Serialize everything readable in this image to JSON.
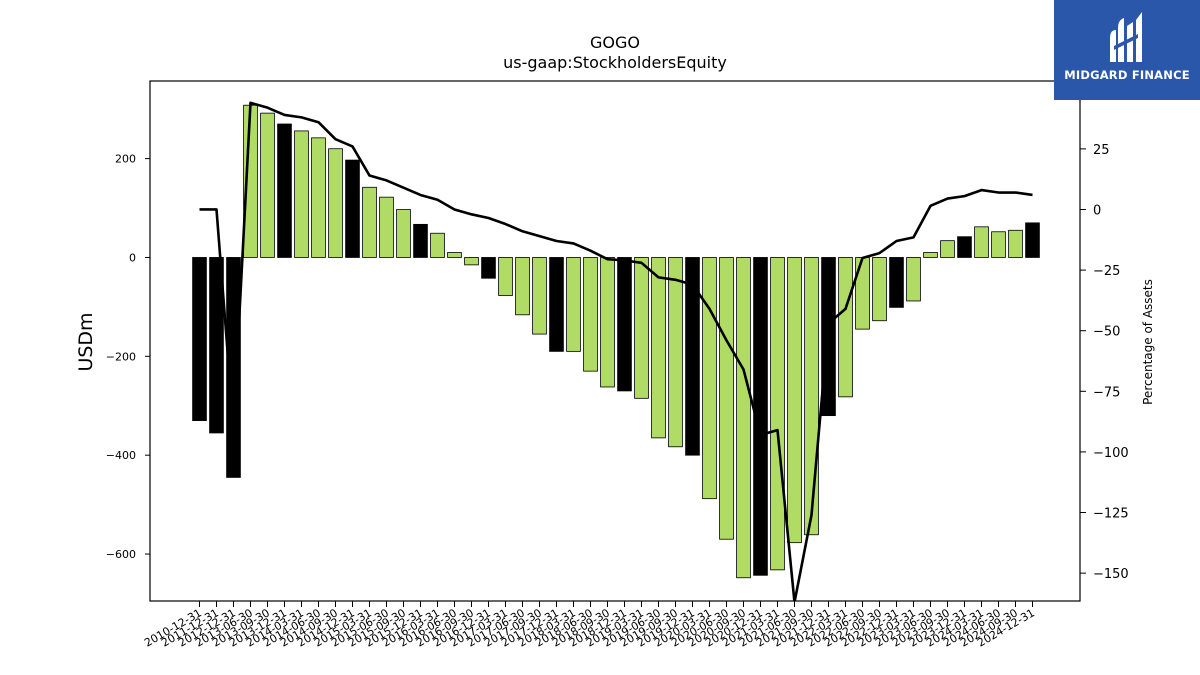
{
  "chart_data": {
    "type": "bar",
    "title": "GOGO",
    "subtitle": "us-gaap:StockholdersEquity",
    "ylabel": "USDm",
    "y2label": "Percentage of Assets",
    "ylim": [
      -695,
      357
    ],
    "y2lim": [
      -161.5,
      53
    ],
    "yticks": [
      -600,
      -400,
      -200,
      0,
      200
    ],
    "y2ticks": [
      -150,
      -125,
      -100,
      -75,
      -50,
      -25,
      0,
      25
    ],
    "grid": false,
    "colors": {
      "positive_bar": "#b0db65",
      "q4_bar": "#000000",
      "line": "#000000"
    },
    "categories": [
      "2010-12-31",
      "2011-12-31",
      "2012-12-31",
      "2013-06-30",
      "2013-09-30",
      "2013-12-31",
      "2014-03-31",
      "2014-06-30",
      "2014-09-30",
      "2014-12-31",
      "2015-03-31",
      "2015-06-30",
      "2015-09-30",
      "2015-12-31",
      "2016-03-31",
      "2016-06-30",
      "2016-09-30",
      "2016-12-31",
      "2017-03-31",
      "2017-06-30",
      "2017-09-30",
      "2017-12-31",
      "2018-03-31",
      "2018-06-30",
      "2018-09-30",
      "2018-12-31",
      "2019-03-31",
      "2019-06-30",
      "2019-09-30",
      "2019-12-31",
      "2020-03-31",
      "2020-06-30",
      "2020-09-30",
      "2020-12-31",
      "2021-03-31",
      "2021-06-30",
      "2021-09-30",
      "2021-12-31",
      "2022-03-31",
      "2022-06-30",
      "2022-09-30",
      "2022-12-31",
      "2023-03-31",
      "2023-06-30",
      "2023-09-30",
      "2023-12-31",
      "2024-03-31",
      "2024-06-30",
      "2024-09-30",
      "2024-12-31"
    ],
    "series": [
      {
        "kind": "bar",
        "values": [
          -330,
          -355,
          -445,
          308,
          292,
          270,
          256,
          242,
          220,
          197,
          142,
          122,
          97,
          67,
          49,
          10,
          -15,
          -42,
          -77,
          -116,
          -155,
          -190,
          -190,
          -230,
          -262,
          -270,
          -285,
          -365,
          -383,
          -400,
          -488,
          -570,
          -648,
          -643,
          -632,
          -577,
          -561,
          -320,
          -282,
          -145,
          -128,
          -101,
          -88,
          10,
          34,
          42,
          62,
          52,
          55,
          70
        ]
      },
      {
        "kind": "line",
        "axis": "right",
        "values": [
          0,
          0,
          -90,
          44,
          42,
          39,
          38,
          36,
          29,
          26,
          14,
          12,
          9,
          6,
          4,
          0,
          -2,
          -3.5,
          -6,
          -9,
          -11,
          -13,
          -14,
          -17,
          -20.5,
          -21,
          -22,
          -28,
          -29,
          -31,
          -41,
          -54,
          -66,
          -93,
          -91,
          -162,
          -126,
          -47,
          -41,
          -20,
          -18,
          -13,
          -11.5,
          1.5,
          4.5,
          5.5,
          8,
          7,
          7,
          6
        ]
      }
    ]
  },
  "logo": {
    "brand": "MIDGARD FINANCE"
  }
}
